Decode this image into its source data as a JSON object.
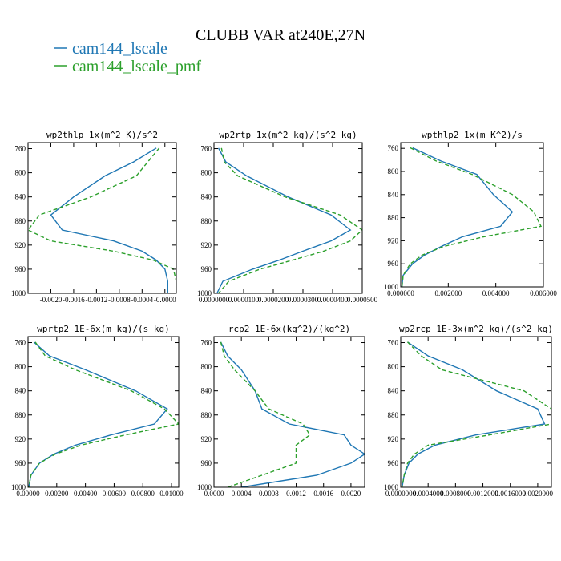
{
  "title": "CLUBB VAR at240E,27N",
  "colors": {
    "s1": "#1f77b4",
    "s2": "#2ca02c"
  },
  "legend": [
    {
      "name": "cam144_lscale",
      "color": "#1f77b4",
      "dash": ""
    },
    {
      "name": "cam144_lscale_pmf",
      "color": "#2ca02c",
      "dash": "5,3"
    }
  ],
  "chart_data": [
    {
      "type": "line",
      "title": "wp2thlp  1x(m^2 K)/s^2",
      "xlim": [
        -0.0024,
        0.0002
      ],
      "ylim": [
        1000,
        750
      ],
      "y_ticks": [
        760,
        800,
        840,
        880,
        920,
        960,
        1000
      ],
      "x_ticks": [
        -0.002,
        -0.0016,
        -0.0012,
        -0.0008,
        -0.0004,
        0.0
      ],
      "x_tick_labels": [
        "-0.0020",
        "-0.0016",
        "-0.0012",
        "-0.0008",
        "-0.0004",
        "-0.0000"
      ],
      "y": [
        759,
        782,
        805,
        840,
        870,
        895,
        913,
        930,
        945,
        960,
        980,
        1000
      ],
      "series": [
        {
          "name": "cam144_lscale",
          "x": [
            -0.00015,
            -0.00055,
            -0.00105,
            -0.0016,
            -0.002,
            -0.0018,
            -0.0009,
            -0.0004,
            -0.00015,
            0.0,
            5e-05,
            5e-05
          ]
        },
        {
          "name": "cam144_lscale_pmf",
          "x": [
            -0.0001,
            -0.0003,
            -0.0005,
            -0.0013,
            -0.0022,
            -0.0024,
            -0.002,
            -0.0009,
            -0.0002,
            0.00015,
            0.0002,
            0.0002
          ]
        }
      ]
    },
    {
      "type": "line",
      "title": "wp2rtp  1x(m^2 kg)/(s^2 kg)",
      "xlim": [
        0,
        5e-05
      ],
      "ylim": [
        1000,
        750
      ],
      "y_ticks": [
        760,
        800,
        840,
        880,
        920,
        960,
        1000
      ],
      "x_ticks": [
        0,
        1e-05,
        2e-05,
        3e-05,
        4e-05,
        5e-05
      ],
      "x_tick_labels": [
        "0.0000000",
        "0.0000100",
        "0.0000200",
        "0.0000300",
        "0.0000400",
        "0.0000500"
      ],
      "y": [
        759,
        782,
        805,
        840,
        870,
        895,
        913,
        930,
        945,
        960,
        980,
        1000
      ],
      "series": [
        {
          "name": "cam144_lscale",
          "x": [
            1.5e-06,
            4e-06,
            1.1e-05,
            2.5e-05,
            3.95e-05,
            4.6e-05,
            3.95e-05,
            3e-05,
            2.2e-05,
            1.3e-05,
            3e-06,
            1e-06
          ]
        },
        {
          "name": "cam144_lscale_pmf",
          "x": [
            2.5e-06,
            3.5e-06,
            8e-06,
            2.4e-05,
            4.25e-05,
            5e-05,
            4.6e-05,
            3.7e-05,
            2.65e-05,
            1.55e-05,
            5e-06,
            1.5e-06
          ]
        }
      ]
    },
    {
      "type": "line",
      "title": "wpthlp2  1x(m K^2)/s",
      "xlim": [
        0,
        0.006
      ],
      "ylim": [
        1000,
        750
      ],
      "y_ticks": [
        760,
        800,
        840,
        880,
        920,
        960,
        1000
      ],
      "x_ticks": [
        0,
        0.002,
        0.004,
        0.006
      ],
      "x_tick_labels": [
        "0.000000",
        "0.002000",
        "0.004000",
        "0.006000"
      ],
      "y": [
        759,
        782,
        805,
        840,
        870,
        895,
        913,
        930,
        945,
        960,
        980,
        1000
      ],
      "series": [
        {
          "name": "cam144_lscale",
          "x": [
            0.0005,
            0.0017,
            0.0032,
            0.0039,
            0.0047,
            0.0042,
            0.0026,
            0.0017,
            0.001,
            0.0005,
            0.0001,
            5e-05
          ]
        },
        {
          "name": "cam144_lscale_pmf",
          "x": [
            0.0004,
            0.0015,
            0.003,
            0.0047,
            0.0056,
            0.0059,
            0.0035,
            0.0018,
            0.0009,
            0.0004,
            0.0001,
            5e-05
          ]
        }
      ]
    },
    {
      "type": "line",
      "title": "wprtp2  1E-6x(m kg)/(s kg)",
      "xlim": [
        0,
        0.0105
      ],
      "ylim": [
        1000,
        750
      ],
      "y_ticks": [
        760,
        800,
        840,
        880,
        920,
        960,
        1000
      ],
      "x_ticks": [
        0,
        0.002,
        0.004,
        0.006,
        0.008,
        0.01
      ],
      "x_tick_labels": [
        "0.00000",
        "0.00200",
        "0.00400",
        "0.00600",
        "0.00800",
        "0.01000"
      ],
      "y": [
        759,
        782,
        805,
        840,
        870,
        895,
        913,
        930,
        945,
        960,
        980,
        1000
      ],
      "series": [
        {
          "name": "cam144_lscale",
          "x": [
            0.0004,
            0.0015,
            0.004,
            0.0075,
            0.0097,
            0.0088,
            0.0058,
            0.0033,
            0.0018,
            0.0008,
            0.0002,
            5e-05
          ]
        },
        {
          "name": "cam144_lscale_pmf",
          "x": [
            0.0005,
            0.0012,
            0.0033,
            0.0072,
            0.0095,
            0.0105,
            0.0068,
            0.0037,
            0.0019,
            0.0008,
            0.0002,
            5e-05
          ]
        }
      ]
    },
    {
      "type": "line",
      "title": "rcp2  1E-6x(kg^2)/(kg^2)",
      "xlim": [
        0,
        0.0022
      ],
      "ylim": [
        1000,
        750
      ],
      "y_ticks": [
        760,
        800,
        840,
        880,
        920,
        960,
        1000
      ],
      "x_ticks": [
        0,
        0.0004,
        0.0008,
        0.0012,
        0.0016,
        0.002
      ],
      "x_tick_labels": [
        "0.0000",
        "0.0004",
        "0.0008",
        "0.0012",
        "0.0016",
        "0.0020"
      ],
      "y": [
        759,
        782,
        805,
        840,
        870,
        895,
        913,
        930,
        945,
        960,
        980,
        1000
      ],
      "series": [
        {
          "name": "cam144_lscale",
          "x": [
            0.0001,
            0.0002,
            0.0004,
            0.0006,
            0.0007,
            0.0011,
            0.0019,
            0.002,
            0.0022,
            0.002,
            0.0015,
            0.0004
          ]
        },
        {
          "name": "cam144_lscale_pmf",
          "x": [
            0.0001,
            0.00015,
            0.0003,
            0.0006,
            0.0008,
            0.0013,
            0.0014,
            0.0012,
            0.0012,
            0.0012,
            0.0007,
            0.0002
          ]
        }
      ]
    },
    {
      "type": "line",
      "title": "wp2rcp  1E-3x(m^2 kg)/(s^2 kg)",
      "xlim": [
        0,
        0.0022
      ],
      "ylim": [
        1000,
        750
      ],
      "y_ticks": [
        760,
        800,
        840,
        880,
        920,
        960,
        1000
      ],
      "x_ticks": [
        0,
        0.0004,
        0.0008,
        0.0012,
        0.0016,
        0.002
      ],
      "x_tick_labels": [
        "0.0000000",
        "0.0004000",
        "0.0008000",
        "0.0012000",
        "0.0016000",
        "0.0020000"
      ],
      "y": [
        759,
        782,
        805,
        840,
        870,
        895,
        913,
        930,
        945,
        960,
        980,
        1000
      ],
      "series": [
        {
          "name": "cam144_lscale",
          "x": [
            0.0001,
            0.0004,
            0.0009,
            0.0014,
            0.002,
            0.0021,
            0.0011,
            0.0005,
            0.00025,
            0.00012,
            5e-05,
            2e-05
          ]
        },
        {
          "name": "cam144_lscale_pmf",
          "x": [
            0.0001,
            0.0003,
            0.0006,
            0.0018,
            0.0022,
            0.0022,
            0.0013,
            0.0004,
            0.0002,
            0.0001,
            5e-05,
            2e-05
          ]
        }
      ]
    }
  ]
}
